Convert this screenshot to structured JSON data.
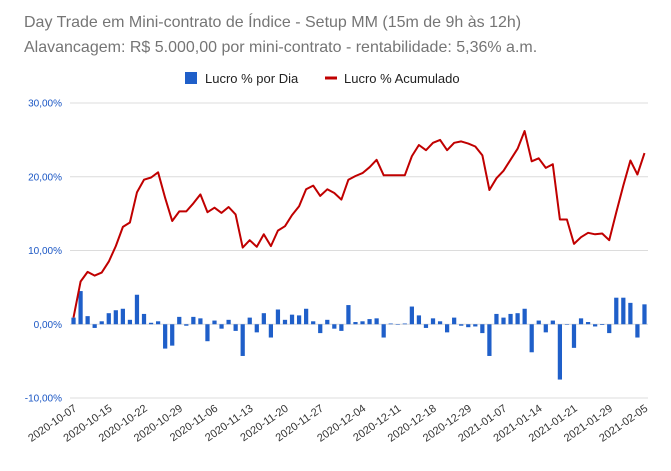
{
  "chart_data": {
    "type": "bar+line",
    "title": "Day Trade em Mini-contrato de Índice - Setup MM (15m de 9h às 12h)",
    "subtitle": "Alavancagem: R$ 5.000,00 por mini-contrato - rentabilidade: 5,36% a.m.",
    "legend_position": "top-center",
    "grid": true,
    "ylim": [
      -10,
      30
    ],
    "y_ticks": [
      "-10,00%",
      "0,00%",
      "10,00%",
      "20,00%",
      "30,00%"
    ],
    "x_ticks": [
      "2020-10-07",
      "2020-10-15",
      "2020-10-22",
      "2020-10-29",
      "2020-11-06",
      "2020-11-13",
      "2020-11-20",
      "2020-11-27",
      "2020-12-04",
      "2020-12-11",
      "2020-12-18",
      "2020-12-29",
      "2021-01-07",
      "2021-01-14",
      "2021-01-21",
      "2021-01-29",
      "2021-02-05"
    ],
    "colors": {
      "bars": "#1f5fc9",
      "line": "#c00000",
      "grid": "#dcdcdc"
    },
    "series": [
      {
        "name": "Lucro % por Dia",
        "kind": "bar",
        "values": [
          0.9,
          4.5,
          1.1,
          -0.5,
          0.4,
          1.5,
          1.9,
          2.1,
          0.6,
          4.0,
          1.4,
          0.2,
          0.4,
          -3.3,
          -2.9,
          1.0,
          -0.2,
          1.0,
          0.8,
          -2.3,
          0.5,
          -0.6,
          0.6,
          -0.9,
          -4.3,
          0.9,
          -1.1,
          1.5,
          -1.8,
          2.0,
          0.6,
          1.3,
          1.2,
          2.1,
          0.4,
          -1.2,
          0.6,
          -0.6,
          -0.9,
          2.6,
          0.3,
          0.4,
          0.7,
          0.8,
          -1.8,
          0.1,
          0.0,
          0.1,
          2.4,
          1.2,
          -0.5,
          0.8,
          0.4,
          -1.1,
          0.9,
          -0.2,
          -0.4,
          -0.3,
          -1.2,
          -4.3,
          1.4,
          0.9,
          1.4,
          1.5,
          2.1,
          -3.8,
          0.5,
          -1.1,
          0.5,
          -7.5,
          0.0,
          -3.2,
          0.8,
          0.3,
          -0.3,
          -0.1,
          -1.2,
          3.6,
          3.6,
          2.9,
          -1.8,
          2.7
        ]
      },
      {
        "name": "Lucro % Acumulado",
        "kind": "line",
        "values": [
          0.9,
          5.8,
          7.1,
          6.6,
          7.0,
          8.5,
          10.6,
          13.2,
          13.8,
          17.9,
          19.6,
          19.9,
          20.6,
          17.1,
          14.0,
          15.3,
          15.3,
          16.4,
          17.6,
          15.2,
          15.8,
          15.1,
          15.9,
          14.9,
          10.4,
          11.4,
          10.5,
          12.2,
          10.6,
          12.7,
          13.3,
          14.8,
          16.0,
          18.3,
          18.8,
          17.4,
          18.3,
          17.8,
          16.9,
          19.6,
          20.1,
          20.5,
          21.3,
          22.3,
          20.2,
          20.2,
          20.2,
          20.2,
          22.8,
          24.3,
          23.6,
          24.6,
          25.0,
          23.6,
          24.6,
          24.8,
          24.5,
          24.1,
          22.9,
          18.2,
          19.8,
          20.8,
          22.3,
          23.8,
          26.2,
          22.1,
          22.5,
          21.2,
          21.7,
          14.2,
          14.2,
          10.9,
          11.8,
          12.4,
          12.2,
          12.3,
          11.4,
          15.2,
          18.8,
          22.2,
          20.3,
          23.2
        ]
      }
    ]
  }
}
